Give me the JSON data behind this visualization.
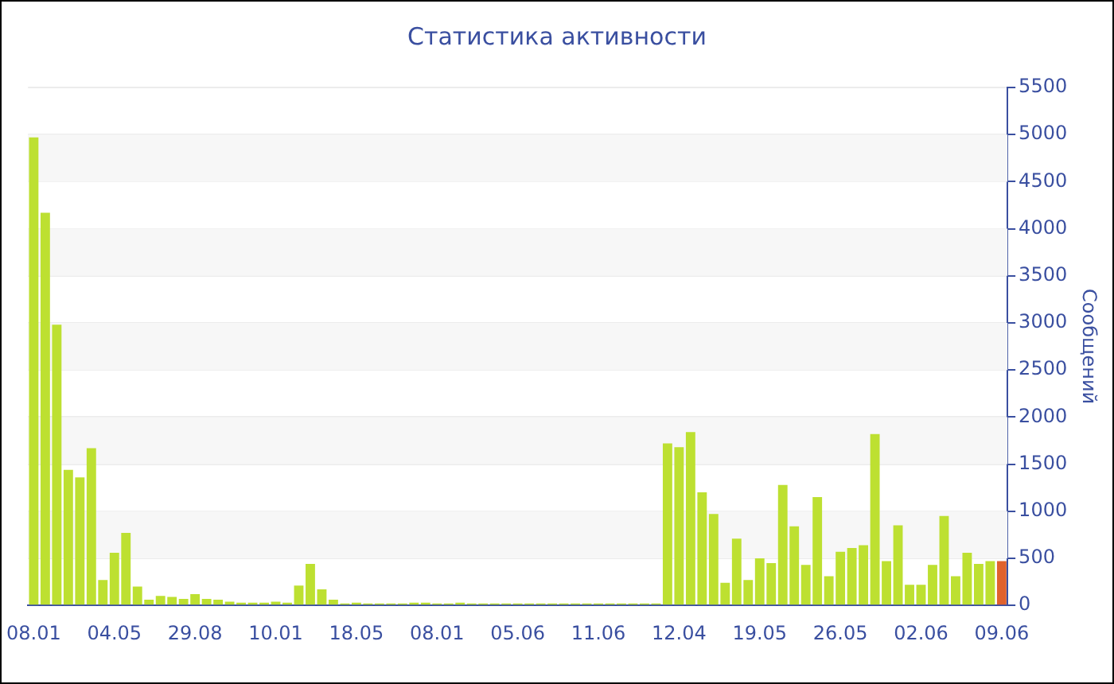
{
  "chart_data": {
    "type": "bar",
    "title": "Статистика активности",
    "ylabel": "Сообщений",
    "categories": [
      "08.01",
      null,
      null,
      null,
      null,
      null,
      null,
      "04.05",
      null,
      null,
      null,
      null,
      null,
      null,
      "29.08",
      null,
      null,
      null,
      null,
      null,
      null,
      "10.01",
      null,
      null,
      null,
      null,
      null,
      null,
      "18.05",
      null,
      null,
      null,
      null,
      null,
      null,
      "08.01",
      null,
      null,
      null,
      null,
      null,
      null,
      "05.06",
      null,
      null,
      null,
      null,
      null,
      null,
      "11.06",
      null,
      null,
      null,
      null,
      null,
      null,
      "12.04",
      null,
      null,
      null,
      null,
      null,
      null,
      "19.05",
      null,
      null,
      null,
      null,
      null,
      null,
      "26.05",
      null,
      null,
      null,
      null,
      null,
      null,
      "02.06",
      null,
      null,
      null,
      null,
      null,
      null,
      "09.06"
    ],
    "values": [
      4970,
      4170,
      2980,
      1440,
      1360,
      1670,
      270,
      560,
      770,
      200,
      60,
      100,
      90,
      70,
      120,
      70,
      60,
      40,
      30,
      30,
      30,
      40,
      30,
      210,
      440,
      170,
      60,
      20,
      30,
      20,
      20,
      20,
      20,
      30,
      30,
      20,
      20,
      30,
      20,
      20,
      20,
      20,
      20,
      20,
      20,
      20,
      20,
      20,
      20,
      20,
      20,
      20,
      20,
      20,
      20,
      1720,
      1680,
      1840,
      1200,
      970,
      240,
      710,
      270,
      500,
      450,
      1280,
      840,
      430,
      1150,
      310,
      570,
      610,
      640,
      1820,
      470,
      850,
      220,
      220,
      430,
      950,
      310,
      560,
      440,
      470,
      470
    ],
    "colors": [
      "#bde031",
      "#bde031",
      "#bde031",
      "#bde031",
      "#bde031",
      "#bde031",
      "#bde031",
      "#bde031",
      "#bde031",
      "#bde031",
      "#bde031",
      "#bde031",
      "#bde031",
      "#bde031",
      "#bde031",
      "#bde031",
      "#bde031",
      "#bde031",
      "#bde031",
      "#bde031",
      "#bde031",
      "#bde031",
      "#bde031",
      "#bde031",
      "#bde031",
      "#bde031",
      "#bde031",
      "#bde031",
      "#bde031",
      "#bde031",
      "#bde031",
      "#bde031",
      "#bde031",
      "#bde031",
      "#bde031",
      "#bde031",
      "#bde031",
      "#bde031",
      "#bde031",
      "#bde031",
      "#bde031",
      "#bde031",
      "#bde031",
      "#bde031",
      "#bde031",
      "#bde031",
      "#bde031",
      "#bde031",
      "#bde031",
      "#bde031",
      "#bde031",
      "#bde031",
      "#bde031",
      "#bde031",
      "#bde031",
      "#bde031",
      "#bde031",
      "#bde031",
      "#bde031",
      "#bde031",
      "#bde031",
      "#bde031",
      "#bde031",
      "#bde031",
      "#bde031",
      "#bde031",
      "#bde031",
      "#bde031",
      "#bde031",
      "#bde031",
      "#bde031",
      "#bde031",
      "#bde031",
      "#bde031",
      "#bde031",
      "#bde031",
      "#bde031",
      "#bde031",
      "#bde031",
      "#bde031",
      "#bde031",
      "#bde031",
      "#bde031",
      "#bde031",
      "#e0622d"
    ],
    "ylim": [
      0,
      5500
    ],
    "yticks": [
      0,
      500,
      1000,
      1500,
      2000,
      2500,
      3000,
      3500,
      4000,
      4500,
      5000,
      5500
    ],
    "grid": "y",
    "legend": false
  }
}
